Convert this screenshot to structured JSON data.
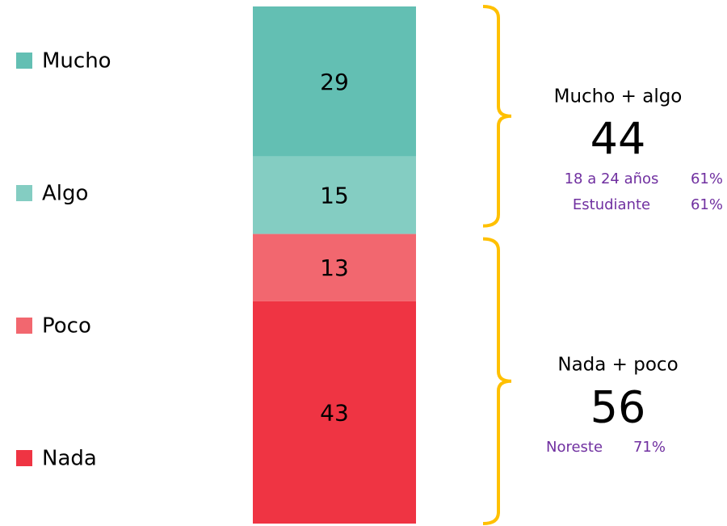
{
  "chart_data": {
    "type": "stacked_bar",
    "series": [
      {
        "name": "Mucho",
        "color": "#63bfb3",
        "values": [
          29
        ]
      },
      {
        "name": "Algo",
        "color": "#84cdc2",
        "values": [
          15
        ]
      },
      {
        "name": "Poco",
        "color": "#f2676f",
        "values": [
          13
        ]
      },
      {
        "name": "Nada",
        "color": "#ef3443",
        "values": [
          43
        ]
      }
    ],
    "ylim": [
      0,
      100
    ],
    "bracket_color": "#ffc000",
    "detail_color": "#7030a0",
    "groups": [
      {
        "label": "Mucho + algo",
        "total": 44,
        "details": [
          {
            "name": "18 a 24 años",
            "value": 61,
            "value_label": "61%"
          },
          {
            "name": "Estudiante",
            "value": 61,
            "value_label": "61%"
          }
        ]
      },
      {
        "label": "Nada + poco",
        "total": 56,
        "details": [
          {
            "name": "Noreste",
            "value": 71,
            "value_label": "71%"
          }
        ]
      }
    ]
  }
}
